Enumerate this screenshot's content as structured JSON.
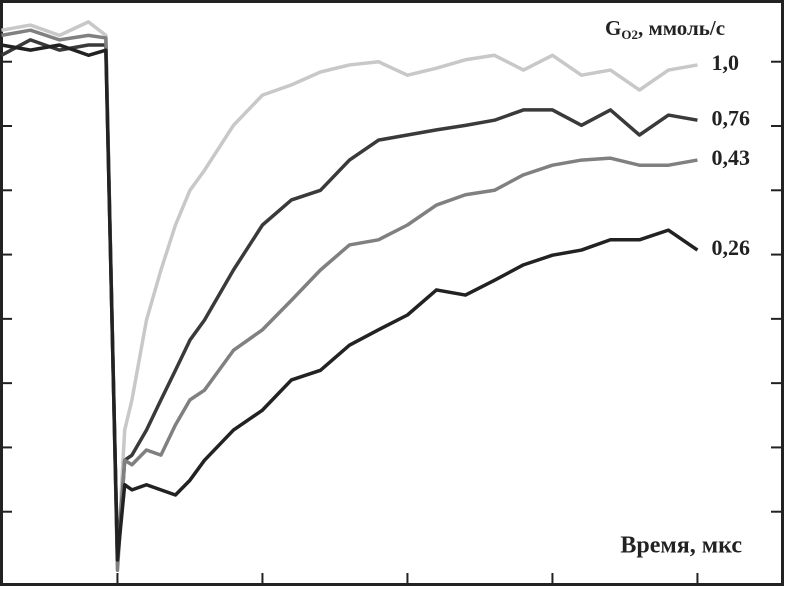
{
  "chart_data": {
    "type": "line",
    "legend_title": {
      "main": "G",
      "sub": "O2",
      "rest": ", ммоль/с"
    },
    "x_label": "Время,  мкс",
    "x": [
      -0.8,
      -0.6,
      -0.4,
      -0.2,
      -0.08,
      0.0,
      0.05,
      0.1,
      0.2,
      0.3,
      0.4,
      0.5,
      0.6,
      0.8,
      1.0,
      1.2,
      1.4,
      1.6,
      1.8,
      2.0,
      2.2,
      2.4,
      2.6,
      2.8,
      3.0,
      3.2,
      3.4,
      3.6,
      3.8,
      4.0
    ],
    "series": [
      {
        "name": "1,0",
        "color": "#c8c8c8",
        "values": [
          8.49,
          8.57,
          8.41,
          8.62,
          8.41,
          0.25,
          2.27,
          2.74,
          3.98,
          4.76,
          5.46,
          6.0,
          6.31,
          7.01,
          7.48,
          7.64,
          7.84,
          7.95,
          8.0,
          7.79,
          7.9,
          8.03,
          8.1,
          7.87,
          8.1,
          7.79,
          7.87,
          7.56,
          7.87,
          7.95
        ]
      },
      {
        "name": "0,76",
        "color": "#3a3a3a",
        "values": [
          8.1,
          8.34,
          8.18,
          8.26,
          8.26,
          0.25,
          1.8,
          1.88,
          2.27,
          2.74,
          3.2,
          3.67,
          3.98,
          4.76,
          5.46,
          5.85,
          6.0,
          6.47,
          6.78,
          6.86,
          6.94,
          7.01,
          7.09,
          7.25,
          7.25,
          7.01,
          7.25,
          6.86,
          7.17,
          7.09
        ]
      },
      {
        "name": "0,43",
        "color": "#808080",
        "values": [
          8.41,
          8.49,
          8.34,
          8.41,
          8.37,
          0.09,
          1.8,
          1.73,
          1.96,
          1.88,
          2.35,
          2.74,
          2.89,
          3.51,
          3.83,
          4.29,
          4.76,
          5.15,
          5.23,
          5.46,
          5.77,
          5.93,
          6.0,
          6.24,
          6.39,
          6.47,
          6.5,
          6.39,
          6.39,
          6.47
        ]
      },
      {
        "name": "0,26",
        "color": "#222222",
        "values": [
          8.26,
          8.18,
          8.26,
          8.1,
          8.18,
          0.25,
          1.42,
          1.34,
          1.42,
          1.34,
          1.26,
          1.49,
          1.8,
          2.27,
          2.58,
          3.05,
          3.2,
          3.59,
          3.83,
          4.06,
          4.45,
          4.37,
          4.6,
          4.84,
          4.99,
          5.07,
          5.23,
          5.23,
          5.38,
          5.07
        ]
      }
    ],
    "xlim": [
      -0.81,
      4.59
    ],
    "ylim": [
      -0.14,
      8.96
    ],
    "xticks": [
      0,
      1,
      2,
      3,
      4
    ],
    "yticks": [
      1,
      2,
      3,
      4,
      5,
      6,
      7,
      8
    ]
  }
}
